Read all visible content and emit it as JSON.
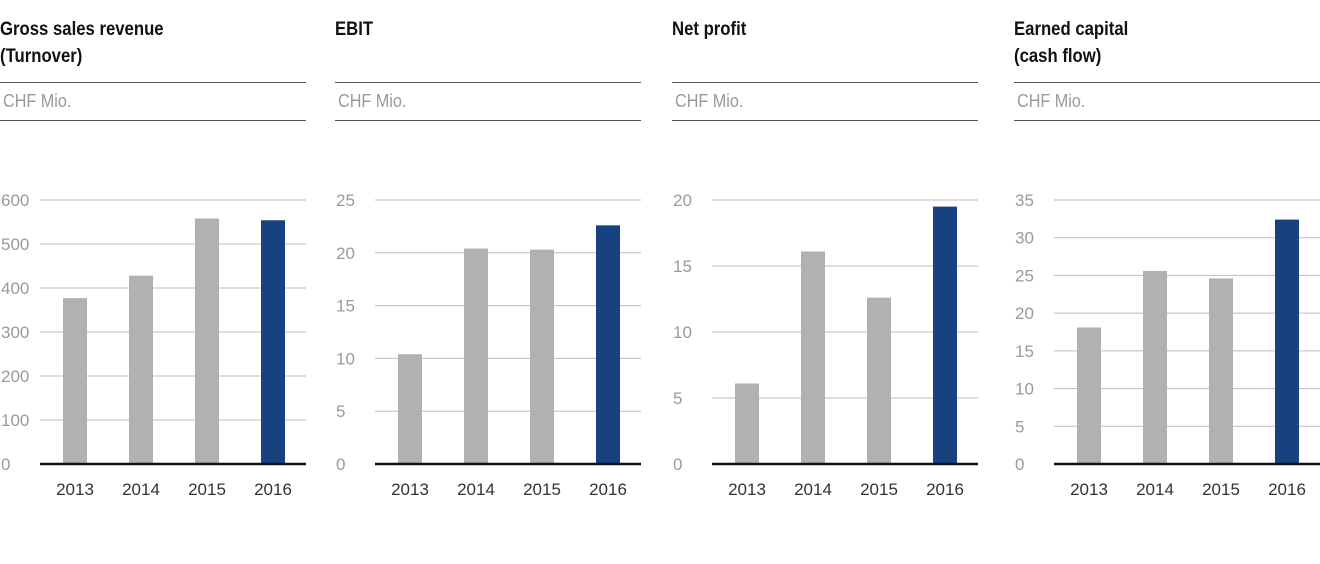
{
  "colors": {
    "bar": "#b1b1b1",
    "highlight": "#17417f",
    "grid": "#bdbdbd",
    "axis": "#111111"
  },
  "chart_data": [
    {
      "type": "bar",
      "title": [
        "Gross sales revenue",
        "(Turnover)"
      ],
      "unit": "CHF Mio.",
      "categories": [
        "2013",
        "2014",
        "2015",
        "2016"
      ],
      "values": [
        377,
        428,
        558,
        554
      ],
      "yticks": [
        0,
        100,
        200,
        300,
        400,
        500,
        600
      ],
      "ylim": [
        0,
        600
      ],
      "highlight_category": "2016",
      "grid": true
    },
    {
      "type": "bar",
      "title": [
        "EBIT"
      ],
      "unit": "CHF Mio.",
      "categories": [
        "2013",
        "2014",
        "2015",
        "2016"
      ],
      "values": [
        10.4,
        20.4,
        20.3,
        22.6
      ],
      "yticks": [
        0,
        5,
        10,
        15,
        20,
        25
      ],
      "ylim": [
        0,
        25
      ],
      "highlight_category": "2016",
      "grid": true
    },
    {
      "type": "bar",
      "title": [
        "Net profit"
      ],
      "unit": "CHF Mio.",
      "categories": [
        "2013",
        "2014",
        "2015",
        "2016"
      ],
      "values": [
        6.1,
        16.1,
        12.6,
        19.5
      ],
      "yticks": [
        0,
        5,
        10,
        15,
        20
      ],
      "ylim": [
        0,
        20
      ],
      "highlight_category": "2016",
      "grid": true
    },
    {
      "type": "bar",
      "title": [
        "Earned capital",
        "(cash flow)"
      ],
      "unit": "CHF Mio.",
      "categories": [
        "2013",
        "2014",
        "2015",
        "2016"
      ],
      "values": [
        18.1,
        25.6,
        24.6,
        32.4
      ],
      "yticks": [
        0,
        5,
        10,
        15,
        20,
        25,
        30,
        35
      ],
      "ylim": [
        0,
        35
      ],
      "highlight_category": "2016",
      "grid": true
    }
  ]
}
